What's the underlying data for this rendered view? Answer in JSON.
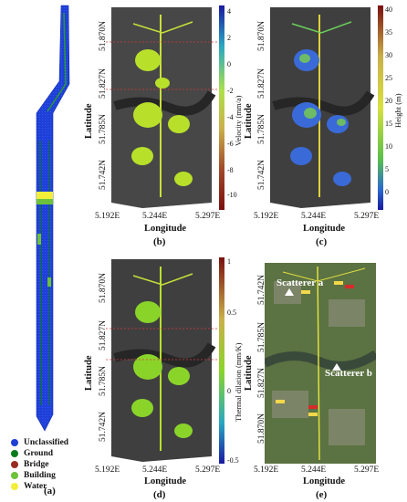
{
  "panel_a": {
    "label": "(a)",
    "legend": [
      {
        "label": "Unclassified",
        "color": "#1f3fd6"
      },
      {
        "label": "Ground",
        "color": "#0b7a1d"
      },
      {
        "label": "Bridge",
        "color": "#9a2b22"
      },
      {
        "label": "Building",
        "color": "#6cc23a"
      },
      {
        "label": "Water",
        "color": "#f2ee3a"
      }
    ]
  },
  "panel_b": {
    "label": "(b)",
    "colorbar_title": "Velocity (mm/a)",
    "colorbar_ticks": [
      "4",
      "2",
      "0",
      "-2",
      "-4",
      "-6",
      "-8",
      "-10"
    ]
  },
  "panel_c": {
    "label": "(c)",
    "colorbar_title": "Height (m)",
    "colorbar_ticks": [
      "40",
      "35",
      "30",
      "25",
      "20",
      "15",
      "10",
      "5",
      "0"
    ]
  },
  "panel_d": {
    "label": "(d)",
    "colorbar_title": "Thermal dilation (mm/K)",
    "colorbar_ticks": [
      "1",
      "0.5",
      "0",
      "-0.5"
    ]
  },
  "panel_e": {
    "label": "(e)",
    "annotations": [
      "Scatterer a",
      "Scatterer b"
    ],
    "lat_ticks": [
      "51.742N",
      "51.785N",
      "51.827N",
      "51.870N"
    ]
  },
  "axes": {
    "xlabel": "Longitude",
    "ylabel": "Latitude",
    "lat_ticks": [
      "51.870N",
      "51.827N",
      "51.785N",
      "51.742N"
    ],
    "lon_ticks": [
      "5.192E",
      "5.244E",
      "5.297E"
    ]
  }
}
